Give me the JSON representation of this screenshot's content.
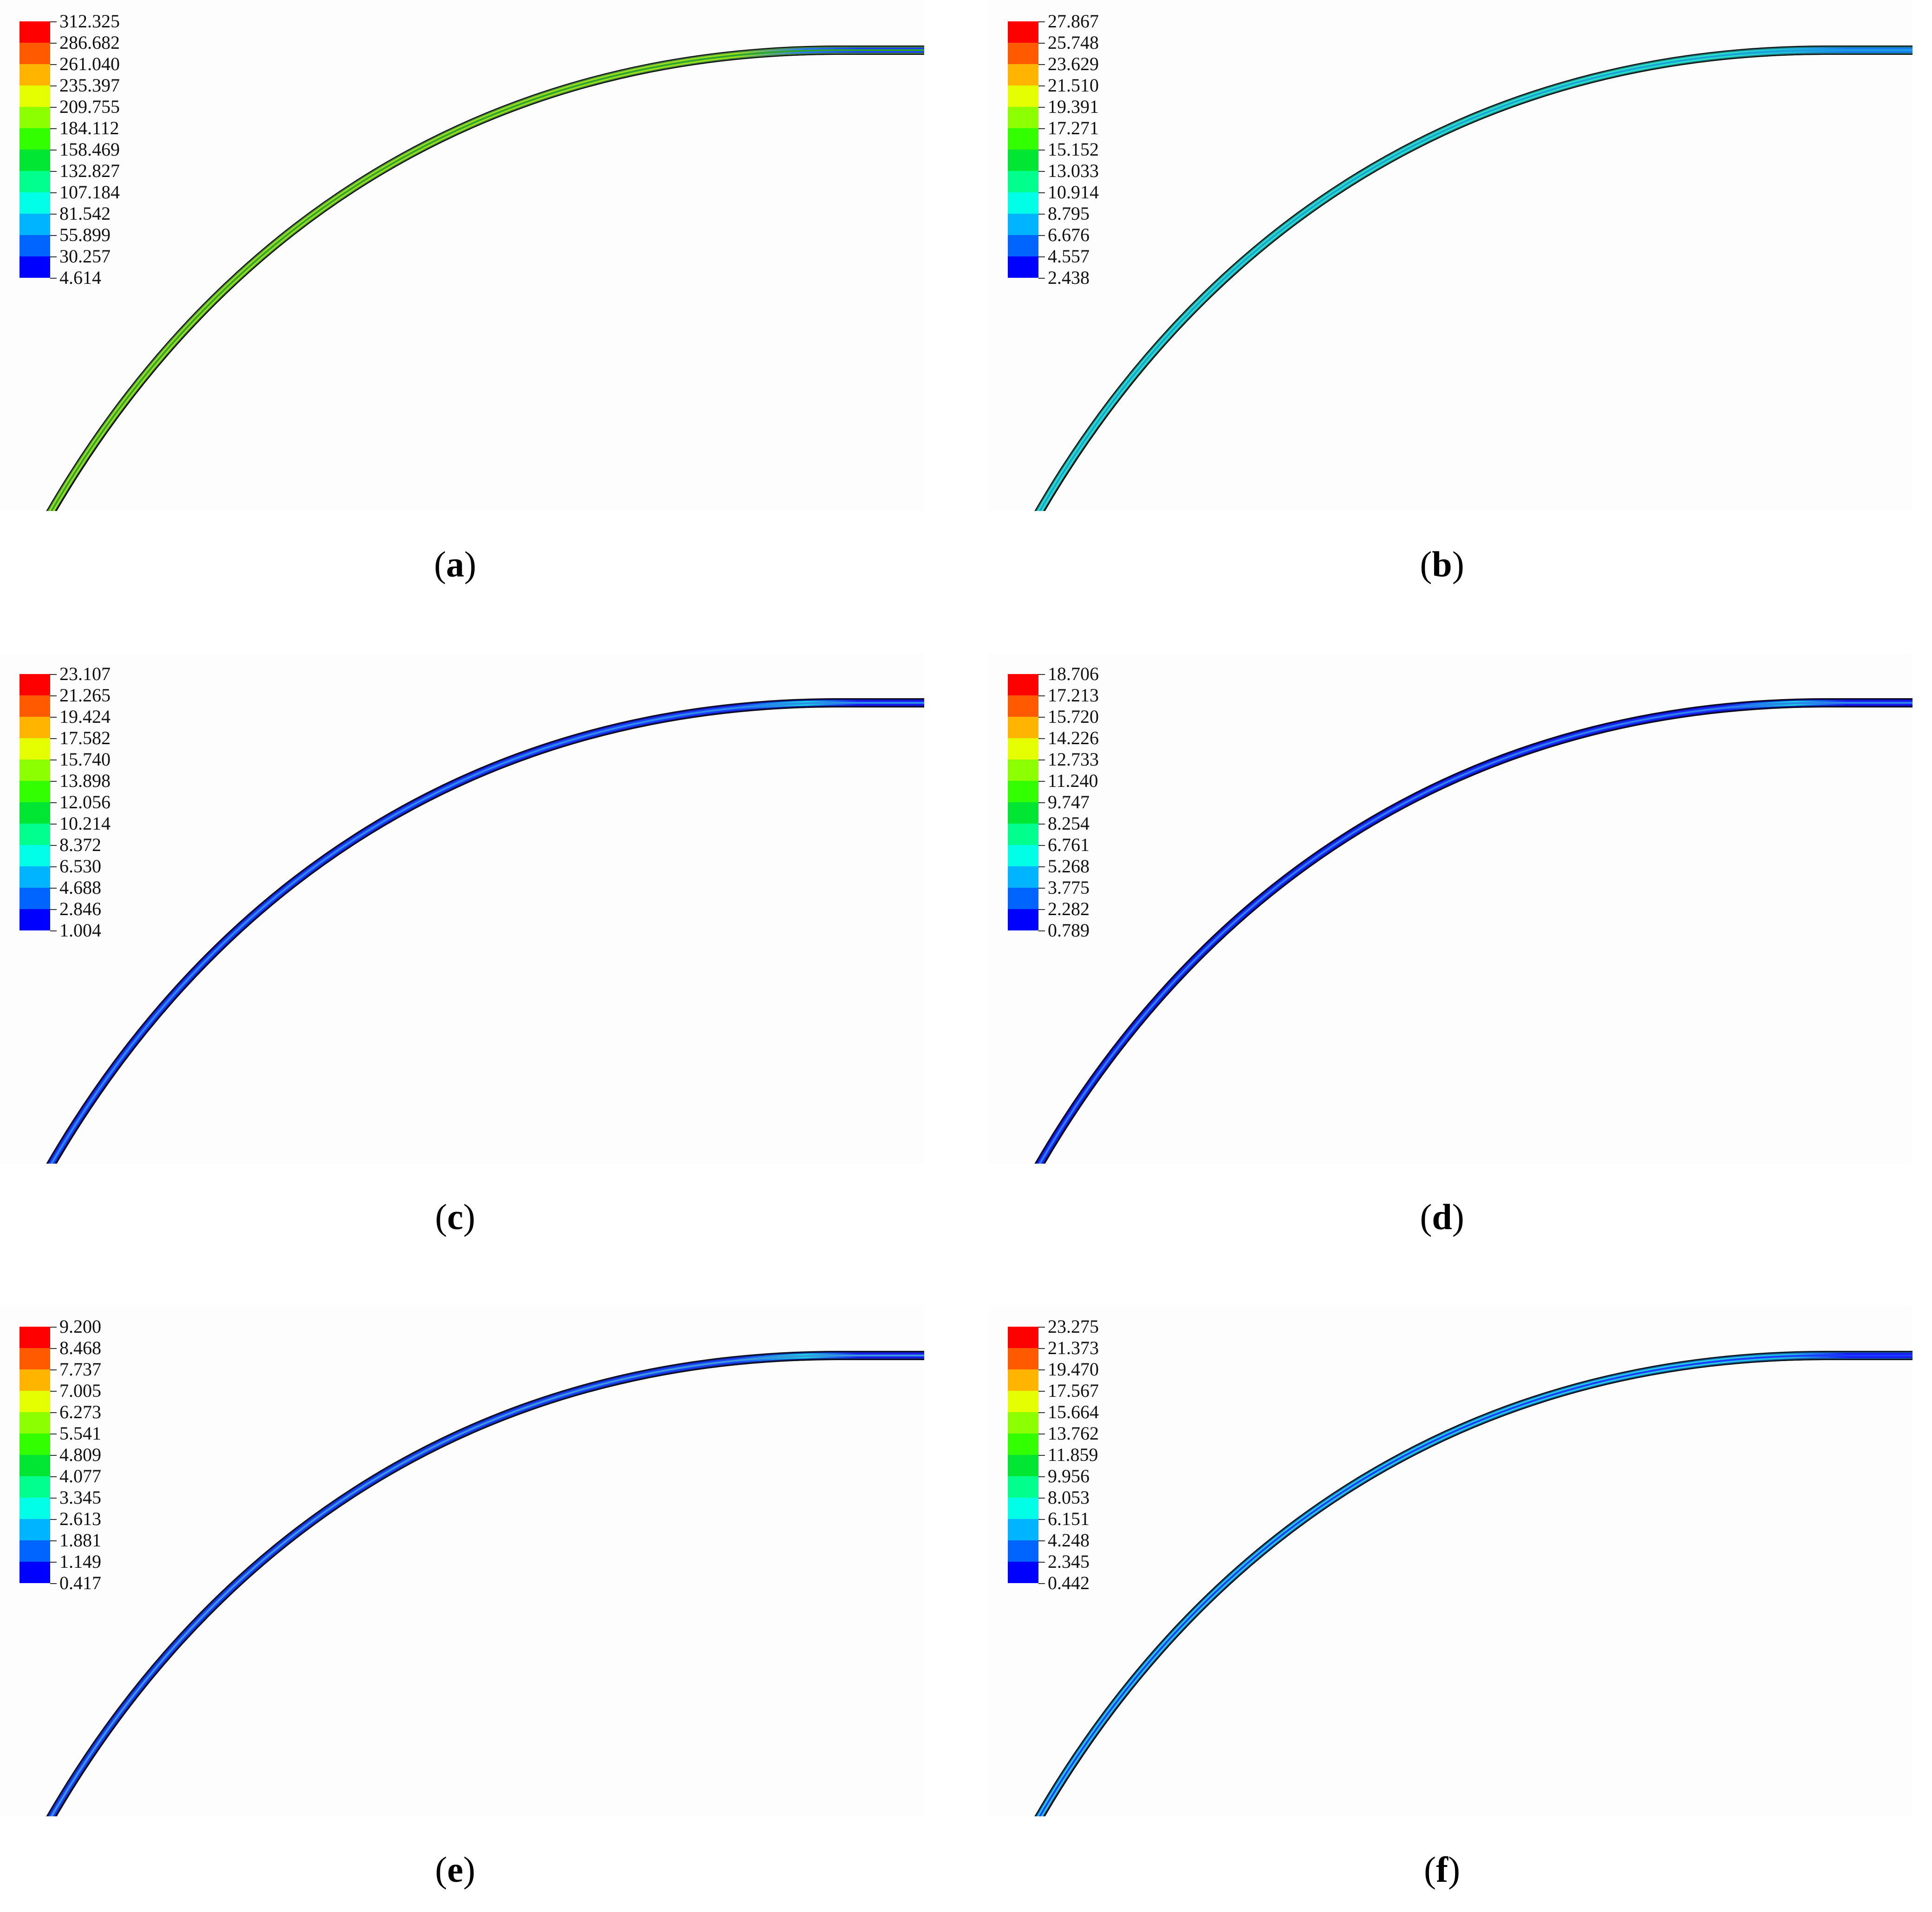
{
  "legend_colors": [
    "#ff0000",
    "#ff5a00",
    "#ffb400",
    "#e6ff00",
    "#8cff00",
    "#32ff00",
    "#00e632",
    "#00ff8c",
    "#00ffe6",
    "#00b4ff",
    "#0064ff",
    "#0000ff"
  ],
  "panels": [
    {
      "id": "a",
      "caption": {
        "open": "(",
        "letter": "a",
        "close": ")"
      },
      "legend": [
        "312.325",
        "286.682",
        "261.040",
        "235.397",
        "209.755",
        "184.112",
        "158.469",
        "132.827",
        "107.184",
        "81.542",
        "55.899",
        "30.257",
        "4.614"
      ],
      "band": {
        "outer": "#3f7f3f",
        "mid": "#9adf1a",
        "inner": "#2ea52e",
        "tip": "#1c3cff",
        "tip2": "#2a78ff"
      }
    },
    {
      "id": "b",
      "caption": {
        "open": "(",
        "letter": "b",
        "close": ")"
      },
      "legend": [
        "27.867",
        "25.748",
        "23.629",
        "21.510",
        "19.391",
        "17.271",
        "15.152",
        "13.033",
        "10.914",
        "8.795",
        "6.676",
        "4.557",
        "2.438"
      ],
      "band": {
        "outer": "#1f6f70",
        "mid": "#28e0c8",
        "inner": "#1aa2d8",
        "tip": "#1c78ff",
        "tip2": "#22b8e0"
      }
    },
    {
      "id": "c",
      "caption": {
        "open": "(",
        "letter": "c",
        "close": ")"
      },
      "legend": [
        "23.107",
        "21.265",
        "19.424",
        "17.582",
        "15.740",
        "13.898",
        "12.056",
        "10.214",
        "8.372",
        "6.530",
        "4.688",
        "2.846",
        "1.004"
      ],
      "band": {
        "outer": "#11128a",
        "mid": "#1b3cff",
        "inner": "#2a8ee6",
        "tip": "#1a1aff",
        "tip2": "#19d2e6"
      }
    },
    {
      "id": "d",
      "caption": {
        "open": "(",
        "letter": "d",
        "close": ")"
      },
      "legend": [
        "18.706",
        "17.213",
        "15.720",
        "14.226",
        "12.733",
        "11.240",
        "9.747",
        "8.254",
        "6.761",
        "5.268",
        "3.775",
        "2.282",
        "0.789"
      ],
      "band": {
        "outer": "#0c0c88",
        "mid": "#1a28ff",
        "inner": "#2a84e8",
        "tip": "#1a1aff",
        "tip2": "#19d2e6"
      }
    },
    {
      "id": "e",
      "caption": {
        "open": "(",
        "letter": "e",
        "close": ")"
      },
      "legend": [
        "9.200",
        "8.468",
        "7.737",
        "7.005",
        "6.273",
        "5.541",
        "4.809",
        "4.077",
        "3.345",
        "2.613",
        "1.881",
        "1.149",
        "0.417"
      ],
      "band": {
        "outer": "#10207e",
        "mid": "#1a40ff",
        "inner": "#3a9ad8",
        "tip": "#1a1aff",
        "tip2": "#19d2e6"
      }
    },
    {
      "id": "f",
      "caption": {
        "open": "(",
        "letter": "f",
        "close": ")"
      },
      "legend": [
        "23.275",
        "21.373",
        "19.470",
        "17.567",
        "15.664",
        "13.762",
        "11.859",
        "9.956",
        "8.053",
        "6.151",
        "4.248",
        "2.345",
        "0.442"
      ],
      "band": {
        "outer": "#114a86",
        "mid": "#22c8e6",
        "inner": "#1a3cff",
        "tip": "#1a1aff",
        "tip2": "#22b8e0"
      }
    }
  ]
}
